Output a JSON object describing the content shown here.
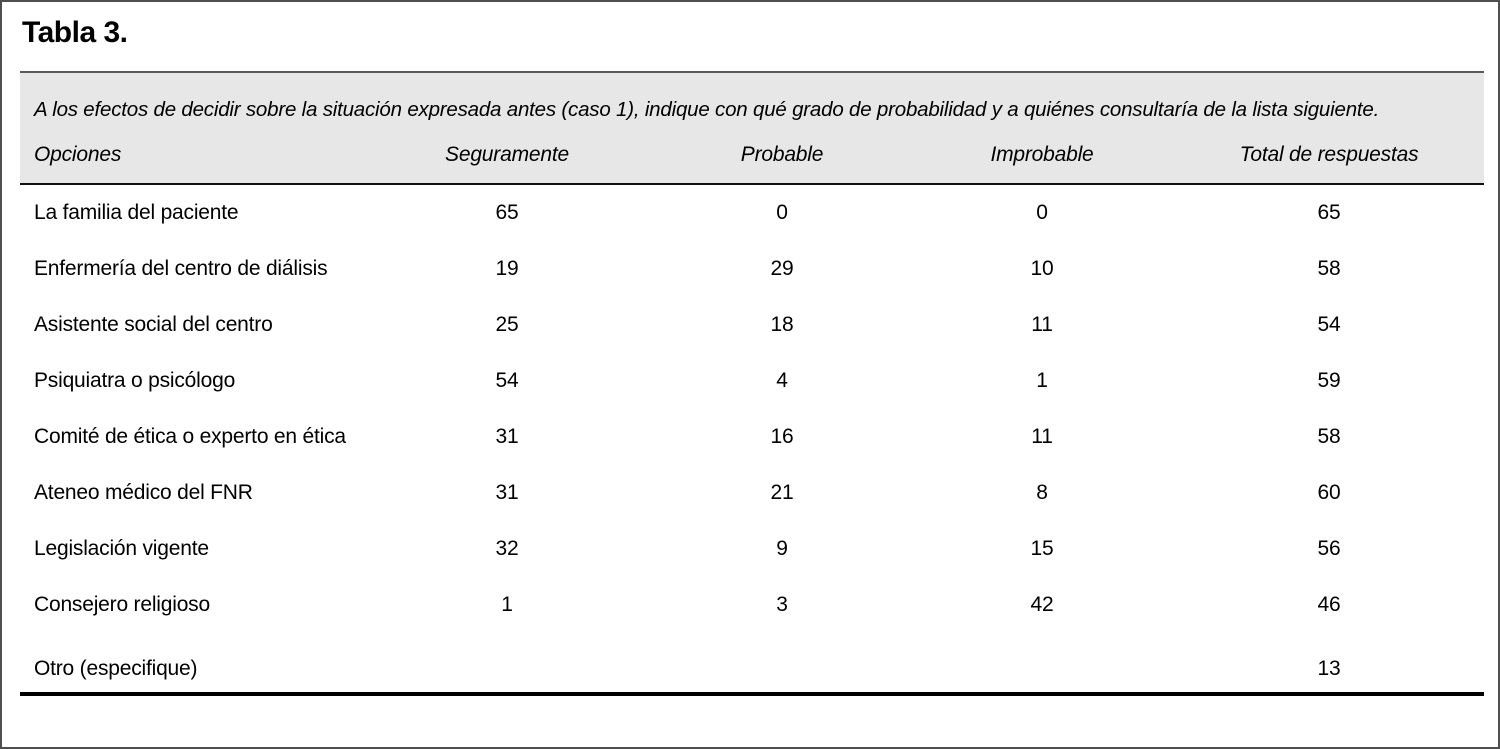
{
  "page": {
    "title": "Tabla 3."
  },
  "table": {
    "caption": "A los efectos de decidir sobre la situación expresada antes (caso 1), indique con qué grado de probabilidad y a quiénes consultaría de la lista siguiente.",
    "columns": [
      "Opciones",
      "Seguramente",
      "Probable",
      "Improbable",
      "Total de respuestas"
    ],
    "rows": [
      {
        "cells": [
          "La familia del paciente",
          "65",
          "0",
          "0",
          "65"
        ]
      },
      {
        "cells": [
          "Enfermería del centro de diálisis",
          "19",
          "29",
          "10",
          "58"
        ]
      },
      {
        "cells": [
          "Asistente social del centro",
          "25",
          "18",
          "11",
          "54"
        ]
      },
      {
        "cells": [
          "Psiquiatra o psicólogo",
          "54",
          "4",
          "1",
          "59"
        ]
      },
      {
        "cells": [
          "Comité de ética o experto en ética",
          "31",
          "16",
          "11",
          "58"
        ]
      },
      {
        "cells": [
          "Ateneo médico del FNR",
          "31",
          "21",
          "8",
          "60"
        ]
      },
      {
        "cells": [
          "Legislación vigente",
          "32",
          "9",
          "15",
          "56"
        ]
      },
      {
        "cells": [
          "Consejero religioso",
          "1",
          "3",
          "42",
          "46"
        ]
      },
      {
        "cells": [
          "Otro (especifique)",
          "",
          "",
          "",
          "13"
        ]
      }
    ],
    "colors": {
      "panel_bg": "#e7e7e7",
      "rule": "#000000",
      "frame": "#4f4f4f"
    }
  }
}
